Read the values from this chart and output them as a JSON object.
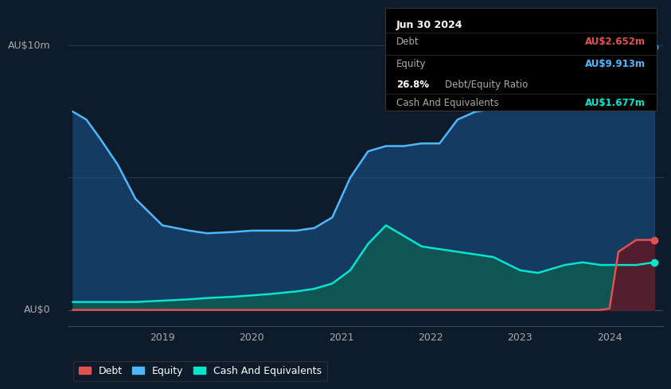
{
  "bg_color": "#0d1b2a",
  "plot_bg_color": "#0d1b2a",
  "ylabel_text": "AU$10m",
  "ylabel_zero": "AU$0",
  "grid_color": "#2a3a4a",
  "y_max": 10.0,
  "y_min": -0.5,
  "x_tick_labels": [
    "2019",
    "2020",
    "2021",
    "2022",
    "2023",
    "2024"
  ],
  "x_tick_positions": [
    1.0,
    2.0,
    3.0,
    4.0,
    5.0,
    6.0
  ],
  "tooltip": {
    "date": "Jun 30 2024",
    "debt_label": "Debt",
    "debt_value": "AU$2.652m",
    "debt_color": "#e05252",
    "equity_label": "Equity",
    "equity_value": "AU$9.913m",
    "equity_color": "#4db8ff",
    "ratio_value": "26.8%",
    "ratio_label": "Debt/Equity Ratio",
    "ratio_color_pct": "#ffffff",
    "ratio_color_label": "#aaaaaa",
    "cash_label": "Cash And Equivalents",
    "cash_value": "AU$1.677m",
    "cash_color": "#00e5cc",
    "box_bg": "#000000",
    "box_border": "#333333",
    "title_color": "#ffffff",
    "label_color": "#aaaaaa"
  },
  "legend": [
    {
      "label": "Debt",
      "color": "#e05252"
    },
    {
      "label": "Equity",
      "color": "#4db8ff"
    },
    {
      "label": "Cash And Equivalents",
      "color": "#00e5cc"
    }
  ],
  "equity_x": [
    0.0,
    0.15,
    0.3,
    0.5,
    0.7,
    1.0,
    1.3,
    1.5,
    1.8,
    2.0,
    2.2,
    2.5,
    2.7,
    2.9,
    3.1,
    3.3,
    3.5,
    3.7,
    3.9,
    4.1,
    4.3,
    4.5,
    4.7,
    5.0,
    5.2,
    5.5,
    5.7,
    5.9,
    6.1,
    6.3,
    6.5
  ],
  "equity_y": [
    7.5,
    7.2,
    6.5,
    5.5,
    4.2,
    3.2,
    3.0,
    2.9,
    2.95,
    3.0,
    3.0,
    3.0,
    3.1,
    3.5,
    5.0,
    6.0,
    6.2,
    6.2,
    6.3,
    6.3,
    7.2,
    7.5,
    7.6,
    8.5,
    8.8,
    9.0,
    9.2,
    9.4,
    9.7,
    9.9,
    9.95
  ],
  "cash_x": [
    0.0,
    0.15,
    0.3,
    0.5,
    0.7,
    1.0,
    1.3,
    1.5,
    1.8,
    2.0,
    2.2,
    2.5,
    2.7,
    2.9,
    3.1,
    3.3,
    3.5,
    3.7,
    3.9,
    4.1,
    4.3,
    4.5,
    4.7,
    5.0,
    5.2,
    5.5,
    5.7,
    5.9,
    6.1,
    6.3,
    6.5
  ],
  "cash_y": [
    0.3,
    0.3,
    0.3,
    0.3,
    0.3,
    0.35,
    0.4,
    0.45,
    0.5,
    0.55,
    0.6,
    0.7,
    0.8,
    1.0,
    1.5,
    2.5,
    3.2,
    2.8,
    2.4,
    2.3,
    2.2,
    2.1,
    2.0,
    1.5,
    1.4,
    1.7,
    1.8,
    1.7,
    1.7,
    1.7,
    1.8
  ],
  "debt_x": [
    0.0,
    0.5,
    1.0,
    1.5,
    2.0,
    2.5,
    3.0,
    3.5,
    4.0,
    4.5,
    5.0,
    5.5,
    5.8,
    5.9,
    6.0,
    6.1,
    6.3,
    6.5
  ],
  "debt_y": [
    0.0,
    0.0,
    0.0,
    0.0,
    0.0,
    0.0,
    0.0,
    0.0,
    0.0,
    0.0,
    0.0,
    0.0,
    0.0,
    0.0,
    0.05,
    2.2,
    2.65,
    2.65
  ],
  "equity_line_color": "#4db8ff",
  "equity_fill_color": "#1a4a7a",
  "cash_line_color": "#00e5cc",
  "cash_fill_color": "#0d5a52",
  "debt_line_color": "#e05252",
  "debt_fill_color": "#5a1a2a",
  "marker_size": 6,
  "line_width": 1.8
}
